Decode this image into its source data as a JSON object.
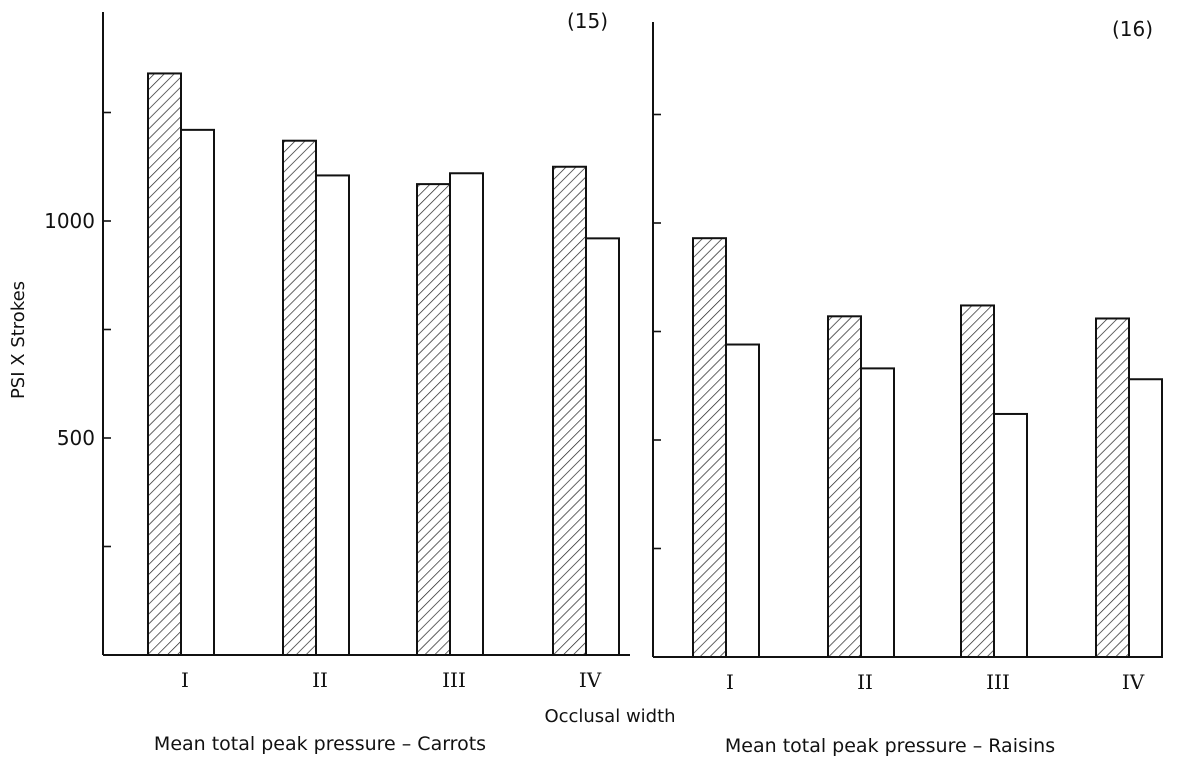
{
  "ylabel": "PSI X Strokes",
  "xlabel": "Occlusal width",
  "chart_data": [
    {
      "type": "bar",
      "panel_tag": "(15)",
      "caption": "Mean total peak pressure – Carrots",
      "categories": [
        "I",
        "II",
        "III",
        "IV"
      ],
      "ylim": [
        0,
        1500
      ],
      "yticks": [
        250,
        500,
        750,
        1000,
        1250
      ],
      "ytick_labels": [
        "",
        "500",
        "",
        "1000",
        ""
      ],
      "series": [
        {
          "pattern": "hatched",
          "values": [
            1340,
            1185,
            1085,
            1125
          ]
        },
        {
          "pattern": "open",
          "values": [
            1210,
            1105,
            1110,
            960
          ]
        }
      ]
    },
    {
      "type": "bar",
      "panel_tag": "(16)",
      "caption": "Mean total peak pressure – Raisins",
      "categories": [
        "I",
        "II",
        "III",
        "IV"
      ],
      "ylim": [
        0,
        1500
      ],
      "yticks": [
        250,
        500,
        750,
        1000,
        1250
      ],
      "ytick_labels": [],
      "series": [
        {
          "pattern": "hatched",
          "values": [
            965,
            785,
            810,
            780
          ]
        },
        {
          "pattern": "open",
          "values": [
            720,
            665,
            560,
            640
          ]
        }
      ]
    }
  ]
}
